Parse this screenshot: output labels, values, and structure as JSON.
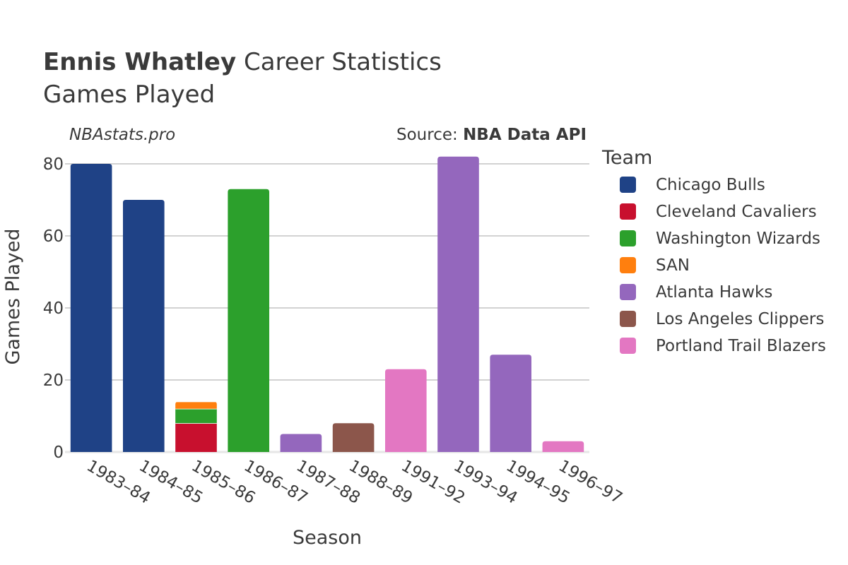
{
  "header": {
    "player_name": "Ennis Whatley",
    "title_rest": "Career Statistics",
    "subtitle": "Games Played",
    "brand": "NBAstats.pro",
    "source_prefix": "Source: ",
    "source_name": "NBA Data API"
  },
  "legend": {
    "title": "Team",
    "items": [
      {
        "label": "Chicago Bulls",
        "color": "#1f4286"
      },
      {
        "label": "Cleveland Cavaliers",
        "color": "#c8102e"
      },
      {
        "label": "Washington Wizards",
        "color": "#2ca02c"
      },
      {
        "label": "SAN",
        "color": "#ff7f0e"
      },
      {
        "label": "Atlanta Hawks",
        "color": "#9467bd"
      },
      {
        "label": "Los Angeles Clippers",
        "color": "#8c564b"
      },
      {
        "label": "Portland Trail Blazers",
        "color": "#e377c2"
      }
    ]
  },
  "chart_data": {
    "type": "bar",
    "stacked": true,
    "xlabel": "Season",
    "ylabel": "Games Played",
    "ylim": [
      0,
      84
    ],
    "yticks": [
      0,
      20,
      40,
      60,
      80
    ],
    "grid": true,
    "legend_position": "right",
    "categories": [
      "1983–84",
      "1984–85",
      "1985–86",
      "1986–87",
      "1987–88",
      "1988–89",
      "1991–92",
      "1993–94",
      "1994–95",
      "1996–97"
    ],
    "series": [
      {
        "name": "Chicago Bulls",
        "color": "#1f4286",
        "values": [
          80,
          70,
          null,
          null,
          null,
          null,
          null,
          null,
          null,
          null
        ]
      },
      {
        "name": "Cleveland Cavaliers",
        "color": "#c8102e",
        "values": [
          null,
          null,
          8,
          null,
          null,
          null,
          null,
          null,
          null,
          null
        ]
      },
      {
        "name": "Washington Wizards",
        "color": "#2ca02c",
        "values": [
          null,
          null,
          4,
          73,
          null,
          null,
          null,
          null,
          null,
          null
        ]
      },
      {
        "name": "SAN",
        "color": "#ff7f0e",
        "values": [
          null,
          null,
          2,
          null,
          null,
          null,
          null,
          null,
          null,
          null
        ]
      },
      {
        "name": "Atlanta Hawks",
        "color": "#9467bd",
        "values": [
          null,
          null,
          null,
          null,
          5,
          null,
          null,
          82,
          27,
          null
        ]
      },
      {
        "name": "Los Angeles Clippers",
        "color": "#8c564b",
        "values": [
          null,
          null,
          null,
          null,
          null,
          8,
          null,
          null,
          null,
          null
        ]
      },
      {
        "name": "Portland Trail Blazers",
        "color": "#e377c2",
        "values": [
          null,
          null,
          null,
          null,
          null,
          null,
          23,
          null,
          null,
          3
        ]
      }
    ]
  }
}
